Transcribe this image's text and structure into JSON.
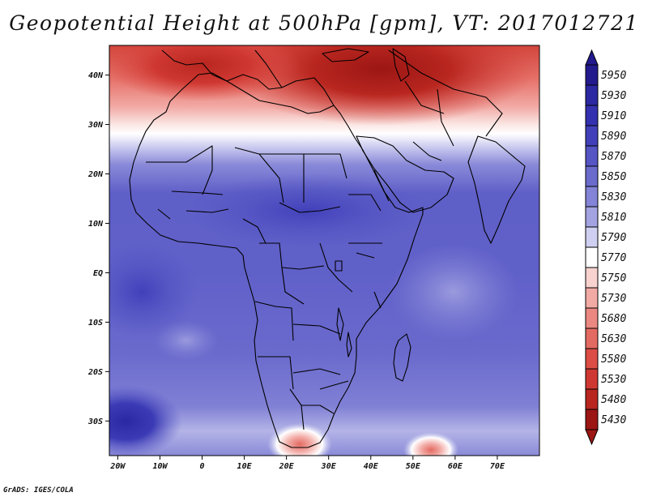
{
  "title": "Geopotential Height at 500hPa [gpm], VT: 2017012721",
  "credit": "GrADS: IGES/COLA",
  "map": {
    "variable": "Geopotential Height",
    "level": "500hPa",
    "units": "gpm",
    "valid_time": "2017012721",
    "lon_range": [
      -22,
      80
    ],
    "lat_range": [
      -37,
      46
    ],
    "lat_ticks": [
      {
        "value": 40,
        "label": "40N"
      },
      {
        "value": 30,
        "label": "30N"
      },
      {
        "value": 20,
        "label": "20N"
      },
      {
        "value": 10,
        "label": "10N"
      },
      {
        "value": 0,
        "label": "EQ"
      },
      {
        "value": -10,
        "label": "10S"
      },
      {
        "value": -20,
        "label": "20S"
      },
      {
        "value": -30,
        "label": "30S"
      }
    ],
    "lon_ticks": [
      {
        "value": -20,
        "label": "20W"
      },
      {
        "value": -10,
        "label": "10W"
      },
      {
        "value": 0,
        "label": "0"
      },
      {
        "value": 10,
        "label": "10E"
      },
      {
        "value": 20,
        "label": "20E"
      },
      {
        "value": 30,
        "label": "30E"
      },
      {
        "value": 40,
        "label": "40E"
      },
      {
        "value": 50,
        "label": "50E"
      },
      {
        "value": 60,
        "label": "60E"
      },
      {
        "value": 70,
        "label": "70E"
      }
    ]
  },
  "colorbar": {
    "levels": [
      {
        "label": "5950",
        "color": "#231a8e"
      },
      {
        "label": "5930",
        "color": "#2b28a2"
      },
      {
        "label": "5910",
        "color": "#3431b0"
      },
      {
        "label": "5890",
        "color": "#4140ba"
      },
      {
        "label": "5870",
        "color": "#5555c4"
      },
      {
        "label": "5850",
        "color": "#6b6bcd"
      },
      {
        "label": "5830",
        "color": "#8383d7"
      },
      {
        "label": "5810",
        "color": "#a3a3e2"
      },
      {
        "label": "5790",
        "color": "#cfcff1"
      },
      {
        "label": "5770",
        "color": "#ffffff"
      },
      {
        "label": "5750",
        "color": "#f8d2cf"
      },
      {
        "label": "5730",
        "color": "#f2aaa5"
      },
      {
        "label": "5680",
        "color": "#eb8882"
      },
      {
        "label": "5630",
        "color": "#e36a62"
      },
      {
        "label": "5580",
        "color": "#db4d45"
      },
      {
        "label": "5530",
        "color": "#cf3832"
      },
      {
        "label": "5480",
        "color": "#b8261f"
      },
      {
        "label": "5430",
        "color": "#9c1614"
      }
    ]
  }
}
